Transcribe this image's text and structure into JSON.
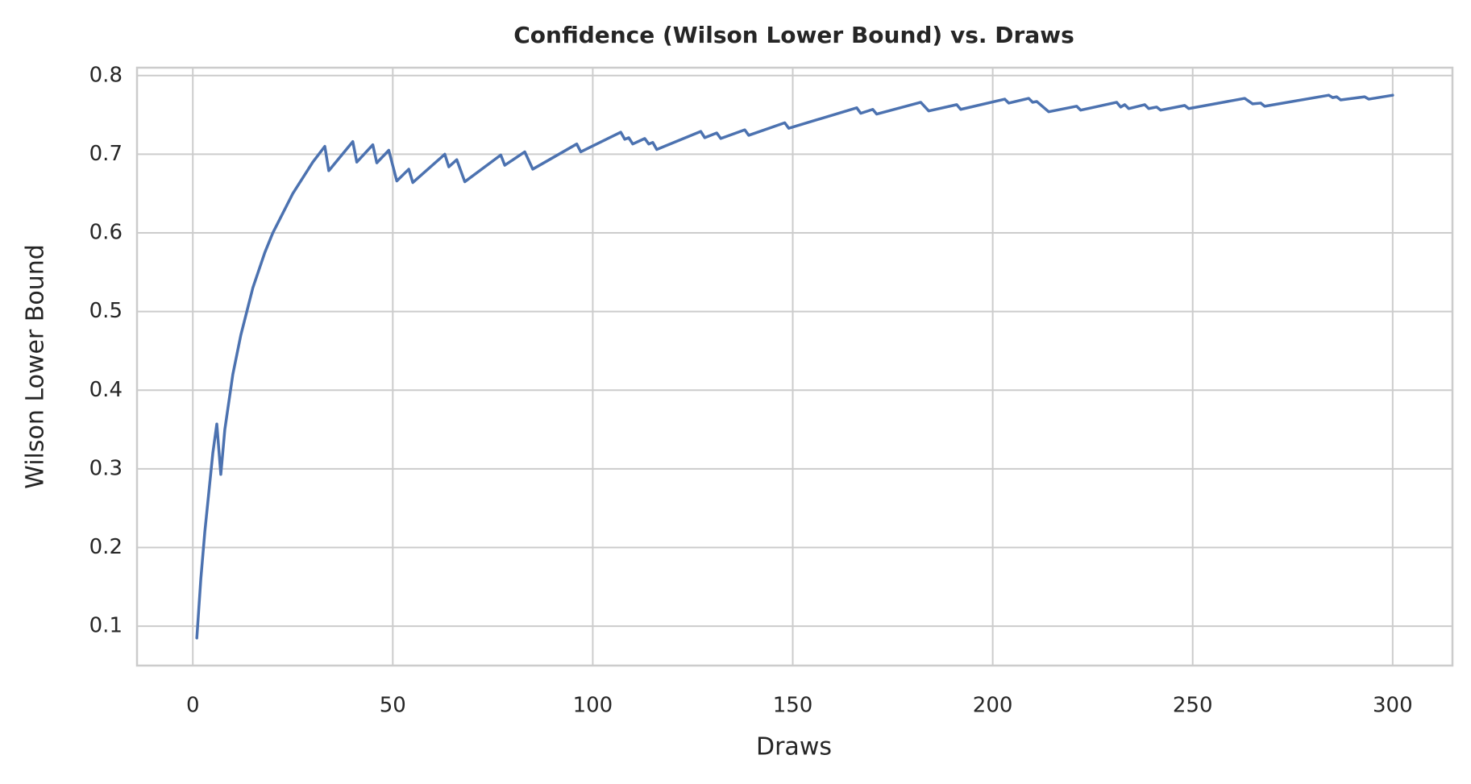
{
  "chart_data": {
    "type": "line",
    "title": "Confidence (Wilson Lower Bound) vs. Draws",
    "x_label": "Draws",
    "y_label": "Wilson Lower Bound",
    "x": [
      1,
      2,
      3,
      4,
      5,
      6,
      7,
      8,
      10,
      12,
      15,
      18,
      20,
      25,
      30,
      33,
      34,
      40,
      41,
      45,
      46,
      49,
      51,
      54,
      55,
      63,
      64,
      66,
      68,
      77,
      78,
      83,
      85,
      96,
      97,
      107,
      108,
      109,
      110,
      113,
      114,
      115,
      116,
      127,
      128,
      131,
      132,
      138,
      139,
      148,
      149,
      166,
      167,
      170,
      171,
      182,
      184,
      191,
      192,
      203,
      204,
      209,
      210,
      211,
      214,
      221,
      222,
      231,
      232,
      233,
      234,
      238,
      239,
      241,
      242,
      248,
      249,
      263,
      265,
      267,
      268,
      284,
      285,
      286,
      287,
      293,
      294,
      300
    ],
    "values": [
      0.085,
      0.16,
      0.22,
      0.27,
      0.32,
      0.357,
      0.293,
      0.35,
      0.42,
      0.47,
      0.53,
      0.575,
      0.6,
      0.65,
      0.69,
      0.71,
      0.679,
      0.716,
      0.69,
      0.712,
      0.689,
      0.705,
      0.666,
      0.681,
      0.664,
      0.7,
      0.684,
      0.693,
      0.665,
      0.699,
      0.686,
      0.703,
      0.681,
      0.713,
      0.703,
      0.728,
      0.719,
      0.721,
      0.713,
      0.72,
      0.713,
      0.715,
      0.706,
      0.729,
      0.721,
      0.727,
      0.72,
      0.731,
      0.724,
      0.74,
      0.733,
      0.759,
      0.752,
      0.757,
      0.751,
      0.766,
      0.755,
      0.763,
      0.757,
      0.77,
      0.765,
      0.771,
      0.766,
      0.767,
      0.754,
      0.761,
      0.756,
      0.766,
      0.76,
      0.763,
      0.758,
      0.763,
      0.758,
      0.76,
      0.756,
      0.762,
      0.758,
      0.771,
      0.764,
      0.765,
      0.761,
      0.775,
      0.772,
      0.773,
      0.769,
      0.773,
      0.77,
      0.775
    ],
    "color": "#4c72b0",
    "xlim": [
      -13.95,
      314.95
    ],
    "xticks": [
      0,
      50,
      100,
      150,
      200,
      250,
      300
    ],
    "ylim": [
      0.05,
      0.81
    ],
    "yticks": [
      0.1,
      0.2,
      0.3,
      0.4,
      0.5,
      0.6,
      0.7,
      0.8
    ],
    "grid": true
  }
}
